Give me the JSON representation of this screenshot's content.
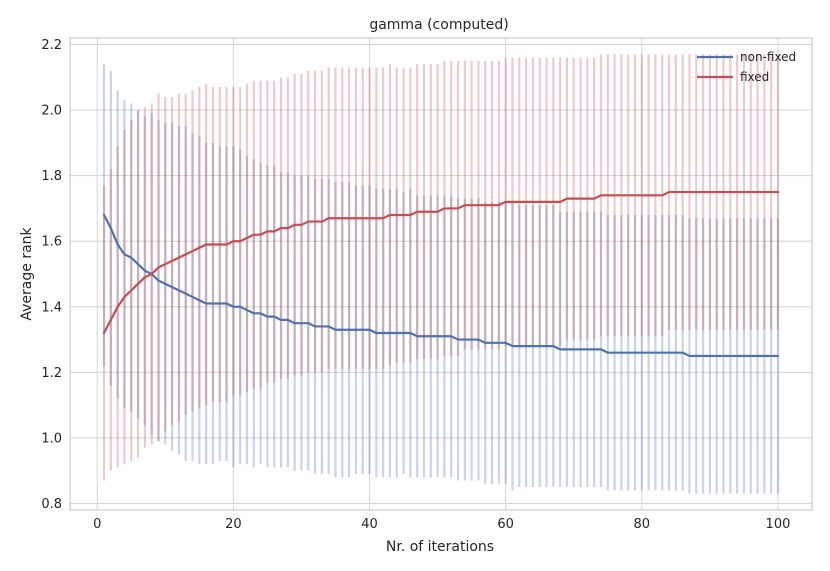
{
  "chart_data": {
    "type": "line",
    "title": "gamma (computed)",
    "xlabel": "Nr. of iterations",
    "ylabel": "Average rank",
    "xlim": [
      -4,
      105
    ],
    "ylim": [
      0.78,
      2.22
    ],
    "xticks": [
      "0",
      "20",
      "40",
      "60",
      "80",
      "100"
    ],
    "yticks": [
      "0.8",
      "1.0",
      "1.2",
      "1.4",
      "1.6",
      "1.8",
      "2.0",
      "2.2"
    ],
    "grid": true,
    "legend_position": "top-right",
    "error_bars": "vertical, one per iteration",
    "x": [
      1,
      2,
      3,
      4,
      5,
      6,
      7,
      8,
      9,
      10,
      11,
      12,
      13,
      14,
      15,
      16,
      17,
      18,
      19,
      20,
      21,
      22,
      23,
      24,
      25,
      26,
      27,
      28,
      29,
      30,
      31,
      32,
      33,
      34,
      35,
      36,
      37,
      38,
      39,
      40,
      41,
      42,
      43,
      44,
      45,
      46,
      47,
      48,
      49,
      50,
      51,
      52,
      53,
      54,
      55,
      56,
      57,
      58,
      59,
      60,
      61,
      62,
      63,
      64,
      65,
      66,
      67,
      68,
      69,
      70,
      71,
      72,
      73,
      74,
      75,
      76,
      77,
      78,
      79,
      80,
      81,
      82,
      83,
      84,
      85,
      86,
      87,
      88,
      89,
      90,
      91,
      92,
      93,
      94,
      95,
      96,
      97,
      98,
      99,
      100
    ],
    "series": [
      {
        "name": "non-fixed",
        "color": "#4c72b0",
        "values": [
          1.68,
          1.64,
          1.59,
          1.56,
          1.55,
          1.53,
          1.51,
          1.5,
          1.48,
          1.47,
          1.46,
          1.45,
          1.44,
          1.43,
          1.42,
          1.41,
          1.41,
          1.41,
          1.41,
          1.4,
          1.4,
          1.39,
          1.38,
          1.38,
          1.37,
          1.37,
          1.36,
          1.36,
          1.35,
          1.35,
          1.35,
          1.34,
          1.34,
          1.34,
          1.33,
          1.33,
          1.33,
          1.33,
          1.33,
          1.33,
          1.32,
          1.32,
          1.32,
          1.32,
          1.32,
          1.32,
          1.31,
          1.31,
          1.31,
          1.31,
          1.31,
          1.31,
          1.3,
          1.3,
          1.3,
          1.3,
          1.29,
          1.29,
          1.29,
          1.29,
          1.28,
          1.28,
          1.28,
          1.28,
          1.28,
          1.28,
          1.28,
          1.27,
          1.27,
          1.27,
          1.27,
          1.27,
          1.27,
          1.27,
          1.26,
          1.26,
          1.26,
          1.26,
          1.26,
          1.26,
          1.26,
          1.26,
          1.26,
          1.26,
          1.26,
          1.26,
          1.25,
          1.25,
          1.25,
          1.25,
          1.25,
          1.25,
          1.25,
          1.25,
          1.25,
          1.25,
          1.25,
          1.25,
          1.25,
          1.25
        ],
        "errors": [
          0.46,
          0.48,
          0.47,
          0.47,
          0.47,
          0.47,
          0.47,
          0.49,
          0.49,
          0.49,
          0.5,
          0.5,
          0.51,
          0.5,
          0.5,
          0.49,
          0.49,
          0.48,
          0.48,
          0.49,
          0.48,
          0.47,
          0.47,
          0.46,
          0.46,
          0.46,
          0.45,
          0.45,
          0.45,
          0.45,
          0.45,
          0.45,
          0.45,
          0.45,
          0.45,
          0.45,
          0.45,
          0.44,
          0.44,
          0.44,
          0.44,
          0.44,
          0.44,
          0.44,
          0.43,
          0.44,
          0.43,
          0.43,
          0.43,
          0.43,
          0.43,
          0.43,
          0.43,
          0.43,
          0.43,
          0.43,
          0.43,
          0.43,
          0.43,
          0.43,
          0.44,
          0.43,
          0.43,
          0.43,
          0.43,
          0.43,
          0.43,
          0.42,
          0.42,
          0.42,
          0.42,
          0.42,
          0.42,
          0.42,
          0.42,
          0.42,
          0.42,
          0.42,
          0.42,
          0.42,
          0.42,
          0.42,
          0.42,
          0.42,
          0.42,
          0.42,
          0.42,
          0.42,
          0.42,
          0.42,
          0.42,
          0.42,
          0.42,
          0.42,
          0.42,
          0.42,
          0.42,
          0.42,
          0.42,
          0.42
        ]
      },
      {
        "name": "fixed",
        "color": "#c44e52",
        "values": [
          1.32,
          1.36,
          1.4,
          1.43,
          1.45,
          1.47,
          1.49,
          1.5,
          1.52,
          1.53,
          1.54,
          1.55,
          1.56,
          1.57,
          1.58,
          1.59,
          1.59,
          1.59,
          1.59,
          1.6,
          1.6,
          1.61,
          1.62,
          1.62,
          1.63,
          1.63,
          1.64,
          1.64,
          1.65,
          1.65,
          1.66,
          1.66,
          1.66,
          1.67,
          1.67,
          1.67,
          1.67,
          1.67,
          1.67,
          1.67,
          1.67,
          1.67,
          1.68,
          1.68,
          1.68,
          1.68,
          1.69,
          1.69,
          1.69,
          1.69,
          1.7,
          1.7,
          1.7,
          1.71,
          1.71,
          1.71,
          1.71,
          1.71,
          1.71,
          1.72,
          1.72,
          1.72,
          1.72,
          1.72,
          1.72,
          1.72,
          1.72,
          1.72,
          1.73,
          1.73,
          1.73,
          1.73,
          1.73,
          1.74,
          1.74,
          1.74,
          1.74,
          1.74,
          1.74,
          1.74,
          1.74,
          1.74,
          1.74,
          1.75,
          1.75,
          1.75,
          1.75,
          1.75,
          1.75,
          1.75,
          1.75,
          1.75,
          1.75,
          1.75,
          1.75,
          1.75,
          1.75,
          1.75,
          1.75,
          1.75
        ],
        "errors": [
          0.45,
          0.46,
          0.49,
          0.51,
          0.52,
          0.53,
          0.52,
          0.52,
          0.53,
          0.51,
          0.5,
          0.5,
          0.49,
          0.49,
          0.49,
          0.49,
          0.48,
          0.48,
          0.48,
          0.47,
          0.47,
          0.47,
          0.47,
          0.47,
          0.46,
          0.46,
          0.46,
          0.46,
          0.46,
          0.46,
          0.46,
          0.46,
          0.46,
          0.46,
          0.46,
          0.46,
          0.46,
          0.46,
          0.46,
          0.46,
          0.46,
          0.46,
          0.46,
          0.45,
          0.45,
          0.45,
          0.45,
          0.45,
          0.45,
          0.45,
          0.45,
          0.45,
          0.45,
          0.44,
          0.44,
          0.44,
          0.44,
          0.44,
          0.44,
          0.44,
          0.44,
          0.44,
          0.44,
          0.44,
          0.44,
          0.44,
          0.44,
          0.44,
          0.43,
          0.43,
          0.43,
          0.43,
          0.43,
          0.43,
          0.43,
          0.43,
          0.43,
          0.43,
          0.43,
          0.43,
          0.43,
          0.43,
          0.43,
          0.42,
          0.42,
          0.42,
          0.42,
          0.42,
          0.42,
          0.42,
          0.42,
          0.42,
          0.42,
          0.42,
          0.42,
          0.42,
          0.42,
          0.42,
          0.42,
          0.42
        ]
      }
    ]
  }
}
